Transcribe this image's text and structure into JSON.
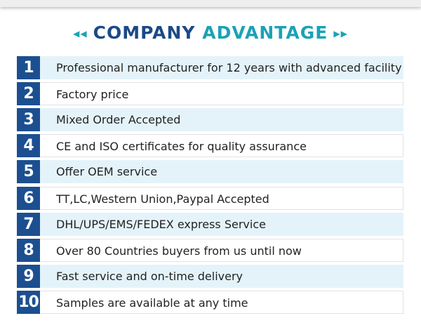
{
  "header": {
    "title_part1": "COMPANY",
    "title_part2": "ADVANTAGE"
  },
  "items": [
    {
      "number": "1",
      "text": "Professional manufacturer for 12 years with advanced facility"
    },
    {
      "number": "2",
      "text": "Factory price"
    },
    {
      "number": "3",
      "text": "Mixed Order Accepted"
    },
    {
      "number": "4",
      "text": "CE and ISO certificates for quality assurance"
    },
    {
      "number": "5",
      "text": "Offer OEM service"
    },
    {
      "number": "6",
      "text": "TT,LC,Western Union,Paypal Accepted"
    },
    {
      "number": "7",
      "text": "DHL/UPS/EMS/FEDEX express Service"
    },
    {
      "number": "8",
      "text": "Over 80 Countries buyers from us until now"
    },
    {
      "number": "9",
      "text": "Fast service and on-time delivery"
    },
    {
      "number": "10",
      "text": "Samples are available at any time"
    }
  ]
}
